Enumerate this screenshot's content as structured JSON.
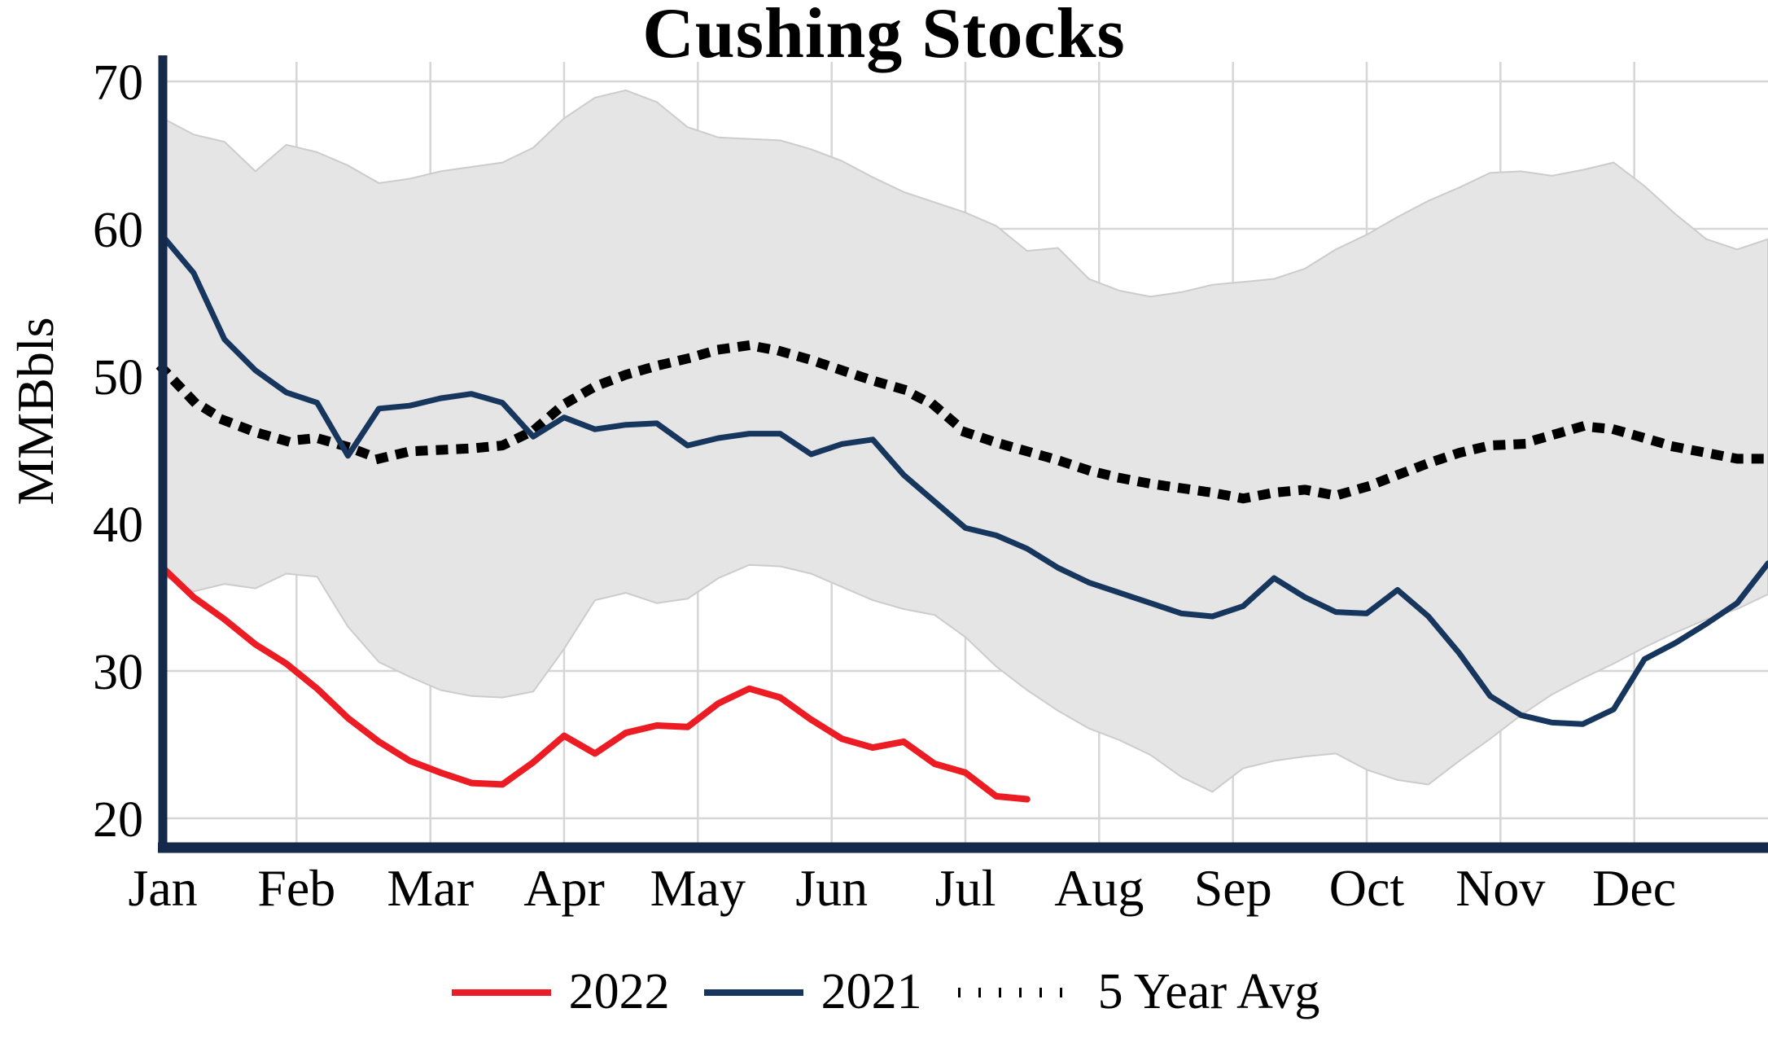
{
  "title": "Cushing Stocks",
  "y_axis": {
    "label": "MMBbls",
    "ticks": [
      20,
      30,
      40,
      50,
      60,
      70
    ]
  },
  "x_axis": {
    "months": [
      "Jan",
      "Feb",
      "Mar",
      "Apr",
      "May",
      "Jun",
      "Jul",
      "Aug",
      "Sep",
      "Oct",
      "Nov",
      "Dec"
    ]
  },
  "legend": {
    "items": [
      {
        "label": "2022",
        "color": "#ec1c24",
        "style": "solid"
      },
      {
        "label": "2021",
        "color": "#17365d",
        "style": "solid"
      },
      {
        "label": "5 Year Avg",
        "color": "#000000",
        "style": "dotted"
      }
    ]
  },
  "colors": {
    "axis": "#15294b",
    "grid": "#d6d6d6",
    "band_fill": "#e5e5e5",
    "band_edge": "#cccccc",
    "red": "#ec1c24",
    "navy": "#17365d",
    "avg": "#000000"
  },
  "chart_data": {
    "type": "line",
    "title": "Cushing Stocks",
    "ylabel": "MMBbls",
    "ylim": [
      18,
      71.5
    ],
    "x_unit": "weeks",
    "weeks": 52,
    "categories": [
      "Jan",
      "Feb",
      "Mar",
      "Apr",
      "May",
      "Jun",
      "Jul",
      "Aug",
      "Sep",
      "Oct",
      "Nov",
      "Dec"
    ],
    "grid": true,
    "legend_position": "bottom",
    "series": [
      {
        "name": "5 Year Range",
        "type": "band",
        "fill": "#e5e5e5",
        "edge": "#cccccc",
        "upper": [
          67.5,
          66.4,
          65.9,
          63.9,
          65.7,
          65.2,
          64.3,
          63.1,
          63.4,
          63.9,
          64.2,
          64.5,
          65.5,
          67.5,
          68.9,
          69.4,
          68.6,
          66.9,
          66.2,
          66.1,
          66.0,
          65.4,
          64.6,
          63.5,
          62.5,
          61.8,
          61.1,
          60.2,
          58.5,
          58.7,
          56.6,
          55.8,
          55.4,
          55.7,
          56.2,
          56.4,
          56.6,
          57.3,
          58.6,
          59.6,
          60.8,
          61.9,
          62.8,
          63.8,
          63.9,
          63.6,
          64.0,
          64.5,
          62.9,
          61.0,
          59.3,
          58.6,
          59.3
        ],
        "lower": [
          36.5,
          35.4,
          35.9,
          35.6,
          36.6,
          36.4,
          33.0,
          30.6,
          29.6,
          28.7,
          28.3,
          28.2,
          28.6,
          31.5,
          34.8,
          35.3,
          34.6,
          34.9,
          36.3,
          37.2,
          37.1,
          36.6,
          35.7,
          34.8,
          34.2,
          33.8,
          32.3,
          30.3,
          28.7,
          27.3,
          26.1,
          25.3,
          24.3,
          22.8,
          21.8,
          23.4,
          23.9,
          24.2,
          24.4,
          23.3,
          22.6,
          22.3,
          23.9,
          25.4,
          27.0,
          28.4,
          29.5,
          30.5,
          31.6,
          32.6,
          33.5,
          34.2,
          35.2
        ]
      },
      {
        "name": "5 Year Avg",
        "type": "line",
        "style": "dotted",
        "color": "#000000",
        "values": [
          50.5,
          48.3,
          47.0,
          46.2,
          45.6,
          45.8,
          45.2,
          44.4,
          44.9,
          45.0,
          45.1,
          45.3,
          46.3,
          48.1,
          49.3,
          50.1,
          50.7,
          51.2,
          51.8,
          52.1,
          51.7,
          51.1,
          50.4,
          49.7,
          49.1,
          48.0,
          46.2,
          45.5,
          44.9,
          44.3,
          43.6,
          43.1,
          42.7,
          42.4,
          42.1,
          41.7,
          42.1,
          42.3,
          41.9,
          42.5,
          43.3,
          44.1,
          44.8,
          45.3,
          45.4,
          46.0,
          46.6,
          46.4,
          45.8,
          45.2,
          44.8,
          44.4,
          44.4
        ]
      },
      {
        "name": "2021",
        "type": "line",
        "style": "solid",
        "color": "#17365d",
        "values": [
          59.5,
          57.0,
          52.5,
          50.4,
          48.9,
          48.2,
          44.6,
          47.8,
          48.0,
          48.5,
          48.8,
          48.2,
          45.9,
          47.2,
          46.4,
          46.7,
          46.8,
          45.3,
          45.8,
          46.1,
          46.1,
          44.7,
          45.4,
          45.7,
          43.3,
          41.5,
          39.7,
          39.2,
          38.3,
          37.0,
          36.0,
          35.3,
          34.6,
          33.9,
          33.7,
          34.4,
          36.3,
          35.0,
          34.0,
          33.9,
          35.5,
          33.7,
          31.2,
          28.3,
          27.0,
          26.5,
          26.4,
          27.4,
          30.8,
          31.9,
          33.2,
          34.6,
          37.3
        ]
      },
      {
        "name": "2022",
        "type": "line",
        "style": "solid",
        "color": "#ec1c24",
        "values": [
          37.0,
          35.0,
          33.5,
          31.8,
          30.5,
          28.8,
          26.8,
          25.2,
          23.9,
          23.1,
          22.4,
          22.3,
          23.8,
          25.6,
          24.4,
          25.8,
          26.3,
          26.2,
          27.8,
          28.8,
          28.2,
          26.7,
          25.4,
          24.8,
          25.2,
          23.7,
          23.1,
          21.5,
          21.3
        ]
      }
    ]
  }
}
